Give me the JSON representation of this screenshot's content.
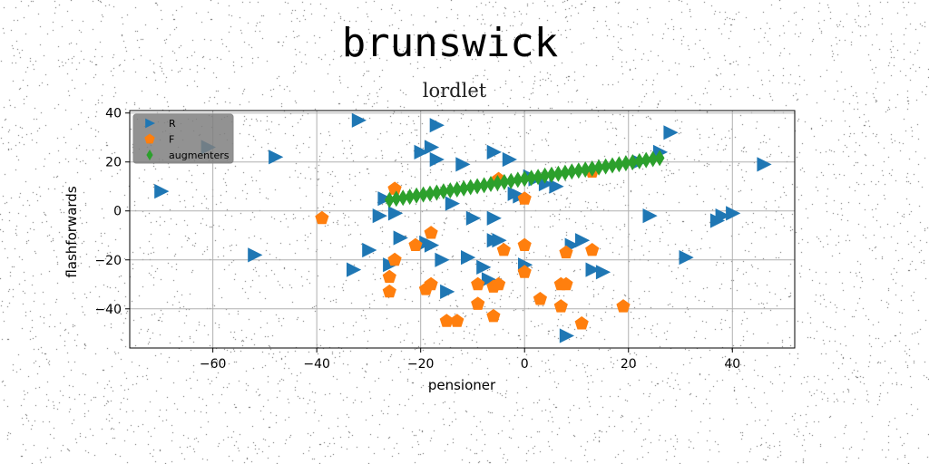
{
  "chart_data": {
    "type": "scatter",
    "title": "brunswick",
    "subtitle": "lordlet",
    "xlabel": "pensioner",
    "ylabel": "flashforwards",
    "xlim": [
      -76,
      52
    ],
    "ylim": [
      -56,
      41
    ],
    "xticks": [
      -60,
      -40,
      -20,
      0,
      20,
      40
    ],
    "yticks": [
      40,
      20,
      0,
      -20,
      -40
    ],
    "xtick_labels": [
      "−60",
      "−40",
      "−20",
      "0",
      "20",
      "40"
    ],
    "ytick_labels": [
      "40",
      "20",
      "0",
      "−20",
      "−40"
    ],
    "grid": true,
    "legend_position": "top-left",
    "series": [
      {
        "name": "R",
        "marker": "triangle-right",
        "color": "#1f77b4",
        "points": [
          [
            -70,
            8
          ],
          [
            -61,
            26
          ],
          [
            -52,
            -18
          ],
          [
            -48,
            22
          ],
          [
            -32,
            37
          ],
          [
            -33,
            -24
          ],
          [
            -30,
            -16
          ],
          [
            -28,
            -2
          ],
          [
            -27,
            5
          ],
          [
            -26,
            -22
          ],
          [
            -25,
            -1
          ],
          [
            -24,
            -11
          ],
          [
            -20,
            24
          ],
          [
            -19,
            -13
          ],
          [
            -18,
            -14
          ],
          [
            -18,
            26
          ],
          [
            -17,
            35
          ],
          [
            -17,
            21
          ],
          [
            -16,
            -20
          ],
          [
            -15,
            -33
          ],
          [
            -14,
            3
          ],
          [
            -12,
            19
          ],
          [
            -11,
            -19
          ],
          [
            -10,
            -3
          ],
          [
            -8,
            -23
          ],
          [
            -7,
            -28
          ],
          [
            -6,
            -12
          ],
          [
            -6,
            24
          ],
          [
            -6,
            -3
          ],
          [
            -5,
            -12
          ],
          [
            -3,
            21
          ],
          [
            -2,
            7
          ],
          [
            -1,
            6
          ],
          [
            0,
            -22
          ],
          [
            1,
            14
          ],
          [
            2,
            13
          ],
          [
            4,
            11
          ],
          [
            6,
            10
          ],
          [
            8,
            -51
          ],
          [
            9,
            -14
          ],
          [
            11,
            -12
          ],
          [
            13,
            -24
          ],
          [
            15,
            -25
          ],
          [
            22,
            20
          ],
          [
            24,
            -2
          ],
          [
            26,
            24
          ],
          [
            28,
            32
          ],
          [
            31,
            -19
          ],
          [
            37,
            -4
          ],
          [
            38,
            -2
          ],
          [
            40,
            -1
          ],
          [
            46,
            19
          ]
        ]
      },
      {
        "name": "F",
        "marker": "pentagon",
        "color": "#ff7f0e",
        "points": [
          [
            -39,
            -3
          ],
          [
            -26,
            -27
          ],
          [
            -26,
            -33
          ],
          [
            -25,
            -20
          ],
          [
            -25,
            9
          ],
          [
            -21,
            -14
          ],
          [
            -19,
            -32
          ],
          [
            -18,
            -30
          ],
          [
            -18,
            -9
          ],
          [
            -15,
            -45
          ],
          [
            -13,
            -45
          ],
          [
            -9,
            -30
          ],
          [
            -9,
            -38
          ],
          [
            -6,
            -31
          ],
          [
            -6,
            -43
          ],
          [
            -5,
            -30
          ],
          [
            -4,
            -16
          ],
          [
            -5,
            13
          ],
          [
            0,
            -25
          ],
          [
            0,
            -14
          ],
          [
            0,
            5
          ],
          [
            3,
            -36
          ],
          [
            7,
            -30
          ],
          [
            7,
            -39
          ],
          [
            8,
            -17
          ],
          [
            8,
            -30
          ],
          [
            11,
            -46
          ],
          [
            13,
            -16
          ],
          [
            13,
            16
          ],
          [
            19,
            -39
          ]
        ]
      },
      {
        "name": "augmenters",
        "marker": "thin-diamond",
        "color": "#2ca02c",
        "points": [
          [
            -26,
            4.5
          ],
          [
            -24.7,
            5.0
          ],
          [
            -23.4,
            5.4
          ],
          [
            -22.1,
            5.8
          ],
          [
            -20.8,
            6.3
          ],
          [
            -19.5,
            6.7
          ],
          [
            -18.2,
            7.1
          ],
          [
            -16.9,
            7.5
          ],
          [
            -15.6,
            8.0
          ],
          [
            -14.3,
            8.4
          ],
          [
            -13,
            8.8
          ],
          [
            -11.7,
            9.2
          ],
          [
            -10.4,
            9.7
          ],
          [
            -9.1,
            10.1
          ],
          [
            -7.8,
            10.5
          ],
          [
            -6.5,
            11.0
          ],
          [
            -5.2,
            11.4
          ],
          [
            -3.9,
            11.8
          ],
          [
            -2.6,
            12.2
          ],
          [
            -1.3,
            12.7
          ],
          [
            0,
            13.1
          ],
          [
            1.3,
            13.5
          ],
          [
            2.6,
            13.9
          ],
          [
            3.9,
            14.4
          ],
          [
            5.2,
            14.8
          ],
          [
            6.5,
            15.2
          ],
          [
            7.8,
            15.6
          ],
          [
            9.1,
            16.1
          ],
          [
            10.4,
            16.5
          ],
          [
            11.7,
            16.9
          ],
          [
            13,
            17.3
          ],
          [
            14.3,
            17.8
          ],
          [
            15.6,
            18.2
          ],
          [
            16.9,
            18.6
          ],
          [
            18.2,
            19.1
          ],
          [
            19.5,
            19.5
          ],
          [
            20.8,
            19.9
          ],
          [
            22.1,
            20.3
          ],
          [
            23.4,
            20.8
          ],
          [
            24.7,
            21.2
          ],
          [
            26,
            21.6
          ]
        ]
      }
    ]
  }
}
